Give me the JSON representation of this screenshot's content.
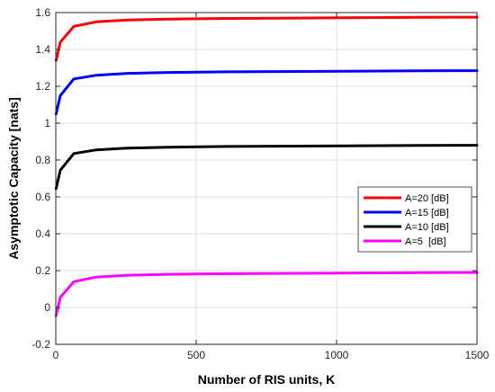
{
  "chart_data": {
    "type": "line",
    "title": "",
    "xlabel": "Number of RIS units, K",
    "ylabel": "Asymptotic Capacity [nats]",
    "xlim": [
      0,
      1500
    ],
    "ylim": [
      -0.2,
      1.6
    ],
    "xticks": [
      0,
      500,
      1000,
      1500
    ],
    "yticks": [
      -0.2,
      0,
      0.2,
      0.4,
      0.6,
      0.8,
      1,
      1.2,
      1.4,
      1.6
    ],
    "xtick_labels": [
      "0",
      "500",
      "1000",
      "1500"
    ],
    "ytick_labels": [
      "-0.2",
      "0",
      "0.2",
      "0.4",
      "0.6",
      "0.8",
      "1",
      "1.2",
      "1.4",
      "1.6"
    ],
    "grid": true,
    "legend_position": "center-right",
    "x": [
      1,
      16,
      64,
      144,
      256,
      400,
      576,
      784,
      1024,
      1296,
      1500
    ],
    "series": [
      {
        "name": "A=20 [dB]",
        "color": "#ff0000",
        "values": [
          1.34,
          1.44,
          1.525,
          1.55,
          1.56,
          1.565,
          1.568,
          1.57,
          1.572,
          1.574,
          1.575
        ]
      },
      {
        "name": "A=15 [dB]",
        "color": "#0000ff",
        "values": [
          1.05,
          1.15,
          1.24,
          1.26,
          1.27,
          1.275,
          1.278,
          1.28,
          1.282,
          1.284,
          1.285
        ]
      },
      {
        "name": "A=10 [dB]",
        "color": "#000000",
        "values": [
          0.645,
          0.745,
          0.835,
          0.855,
          0.865,
          0.87,
          0.873,
          0.875,
          0.877,
          0.879,
          0.88
        ]
      },
      {
        "name": "A=5  [dB]",
        "color": "#ff00ff",
        "values": [
          -0.045,
          0.055,
          0.14,
          0.165,
          0.175,
          0.18,
          0.183,
          0.185,
          0.187,
          0.189,
          0.19
        ]
      }
    ]
  }
}
